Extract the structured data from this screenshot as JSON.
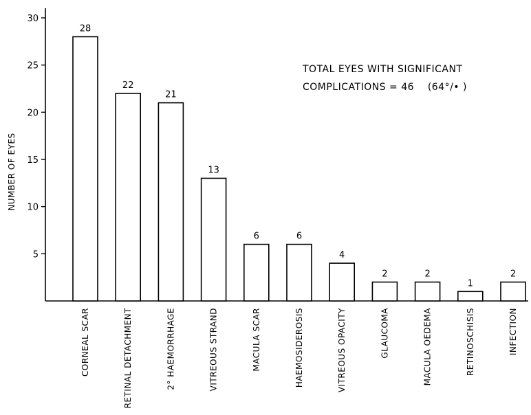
{
  "chart_data": {
    "type": "bar",
    "categories": [
      "CORNEAL SCAR",
      "RETINAL DETACHMENT",
      "2° HAEMORRHAGE",
      "VITREOUS STRAND",
      "MACULA SCAR",
      "HAEMOSIDEROSIS",
      "VITREOUS OPACITY",
      "GLAUCOMA",
      "MACULA OEDEMA",
      "RETINOSCHISIS",
      "INFECTION"
    ],
    "values": [
      28,
      22,
      21,
      13,
      6,
      6,
      4,
      2,
      2,
      1,
      2
    ],
    "data_labels": [
      "28",
      "22",
      "21",
      "13",
      "6",
      "6",
      "4",
      "2",
      "2",
      "1",
      "2"
    ],
    "ylabel": "NUMBER OF EYES",
    "ylim": [
      0,
      30
    ],
    "yticks": [
      5,
      10,
      15,
      20,
      25,
      30
    ],
    "grid": false,
    "annotation": {
      "line1": "TOTAL EYES WITH SIGNIFICANT",
      "line2": "COMPLICATIONS = 46    (64°/• )"
    }
  }
}
